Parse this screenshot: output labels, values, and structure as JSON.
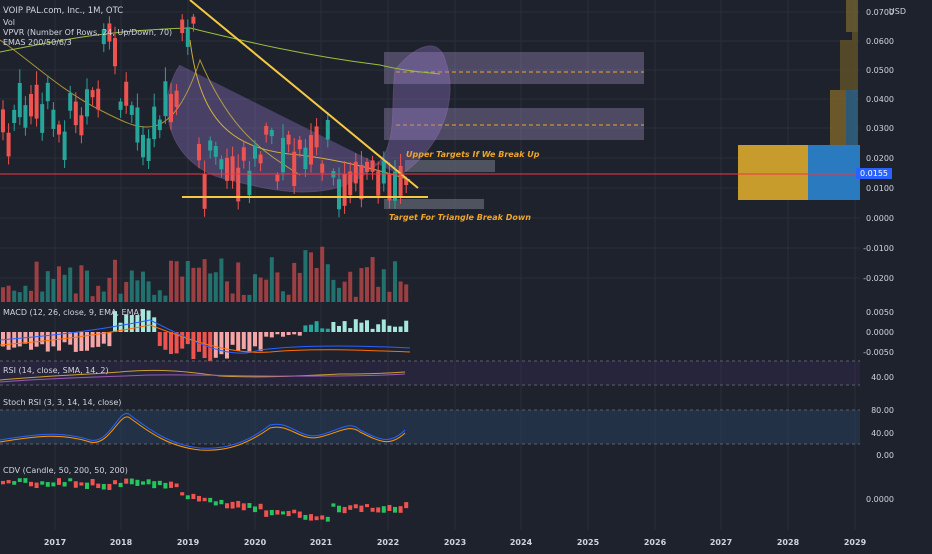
{
  "header": {
    "symbol_line": "VOIP PAL.com, Inc., 1M, OTC",
    "vol": "Vol",
    "vpvr": "VPVR (Number Of Rows, 24, Up/Down, 70)",
    "emas": "EMAS 200/50/6/3",
    "currency": "USD"
  },
  "price_axis": [
    "0.0700",
    "0.0600",
    "0.0500",
    "0.0400",
    "0.0300",
    "0.0200",
    "0.0100",
    "0.0000",
    "-0.0100",
    "-0.0200"
  ],
  "current_price": "0.0155",
  "macd": {
    "label": "MACD (12, 26, close, 9, EMA, EMA)",
    "axis": [
      "0.0050",
      "0.0000",
      "-0.0050"
    ]
  },
  "rsi": {
    "label": "RSI (14, close, SMA, 14, 2)",
    "axis": [
      "40.00"
    ]
  },
  "stoch": {
    "label": "Stoch RSI (3, 3, 14, 14, close)",
    "axis": [
      "80.00",
      "40.00",
      "0.00"
    ]
  },
  "cdv": {
    "label": "CDV (Candle, 50, 200, 50, 200)",
    "axis": [
      "0.0000"
    ]
  },
  "annotations": {
    "upper": "Upper Targets If We Break Up",
    "lower": "Target For Triangle Break Down"
  },
  "time_axis": [
    "2017",
    "2018",
    "2019",
    "2020",
    "2021",
    "2022",
    "2023",
    "2024",
    "2025",
    "2026",
    "2027",
    "2028",
    "2029"
  ],
  "colors": {
    "up": "#26a69a",
    "down": "#ef5350",
    "trend": "#f5c842",
    "bg": "#1e222d"
  }
}
